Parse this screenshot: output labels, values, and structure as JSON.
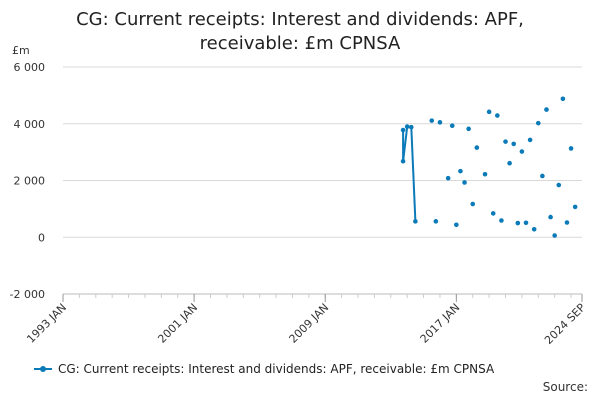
{
  "chart_data": {
    "type": "scatter",
    "title_lines": [
      "CG: Current receipts: Interest and dividends: APF,",
      "receivable: £m CPNSA"
    ],
    "y_unit": "£m",
    "ylim": [
      -2000,
      6000
    ],
    "y_ticks": [
      -2000,
      0,
      2000,
      4000,
      6000
    ],
    "y_tick_labels": [
      "-2 000",
      "0",
      "2 000",
      "4 000",
      "6 000"
    ],
    "xlim": [
      1993.0,
      2024.667
    ],
    "x_ticks": [
      1993.0,
      2001.0,
      2009.0,
      2017.0,
      2024.667
    ],
    "x_tick_labels": [
      "1993 JAN",
      "2001 JAN",
      "2009 JAN",
      "2017 JAN",
      "2024 SEP"
    ],
    "grid": "horizontal",
    "legend_position": "bottom",
    "series": [
      {
        "name": "CG: Current receipts: Interest and dividends: APF, receivable: £m CPNSA",
        "color": "#0a7ab8",
        "line_points": [
          {
            "x": 2013.75,
            "y": 3780
          },
          {
            "x": 2013.75,
            "y": 2680
          },
          {
            "x": 2014.0,
            "y": 3900
          },
          {
            "x": 2014.25,
            "y": 3880
          },
          {
            "x": 2014.5,
            "y": 560
          }
        ],
        "points": [
          {
            "x": 2015.5,
            "y": 4110
          },
          {
            "x": 2015.75,
            "y": 560
          },
          {
            "x": 2016.0,
            "y": 4050
          },
          {
            "x": 2016.5,
            "y": 2080
          },
          {
            "x": 2016.75,
            "y": 3930
          },
          {
            "x": 2017.0,
            "y": 440
          },
          {
            "x": 2017.25,
            "y": 2330
          },
          {
            "x": 2017.5,
            "y": 1930
          },
          {
            "x": 2017.75,
            "y": 3820
          },
          {
            "x": 2018.0,
            "y": 1170
          },
          {
            "x": 2018.25,
            "y": 3160
          },
          {
            "x": 2018.75,
            "y": 2220
          },
          {
            "x": 2019.0,
            "y": 4420
          },
          {
            "x": 2019.25,
            "y": 840
          },
          {
            "x": 2019.5,
            "y": 4290
          },
          {
            "x": 2019.75,
            "y": 590
          },
          {
            "x": 2020.0,
            "y": 3370
          },
          {
            "x": 2020.25,
            "y": 2610
          },
          {
            "x": 2020.5,
            "y": 3290
          },
          {
            "x": 2020.75,
            "y": 500
          },
          {
            "x": 2021.0,
            "y": 3020
          },
          {
            "x": 2021.25,
            "y": 510
          },
          {
            "x": 2021.5,
            "y": 3430
          },
          {
            "x": 2021.75,
            "y": 280
          },
          {
            "x": 2022.0,
            "y": 4020
          },
          {
            "x": 2022.25,
            "y": 2160
          },
          {
            "x": 2022.5,
            "y": 4500
          },
          {
            "x": 2022.75,
            "y": 710
          },
          {
            "x": 2023.0,
            "y": 60
          },
          {
            "x": 2023.25,
            "y": 1840
          },
          {
            "x": 2023.5,
            "y": 4880
          },
          {
            "x": 2023.75,
            "y": 520
          },
          {
            "x": 2024.0,
            "y": 3130
          },
          {
            "x": 2024.25,
            "y": 1070
          }
        ]
      }
    ]
  },
  "legend": {
    "label": "CG: Current receipts: Interest and dividends: APF, receivable: £m CPNSA"
  },
  "source": {
    "label": "Source:"
  }
}
